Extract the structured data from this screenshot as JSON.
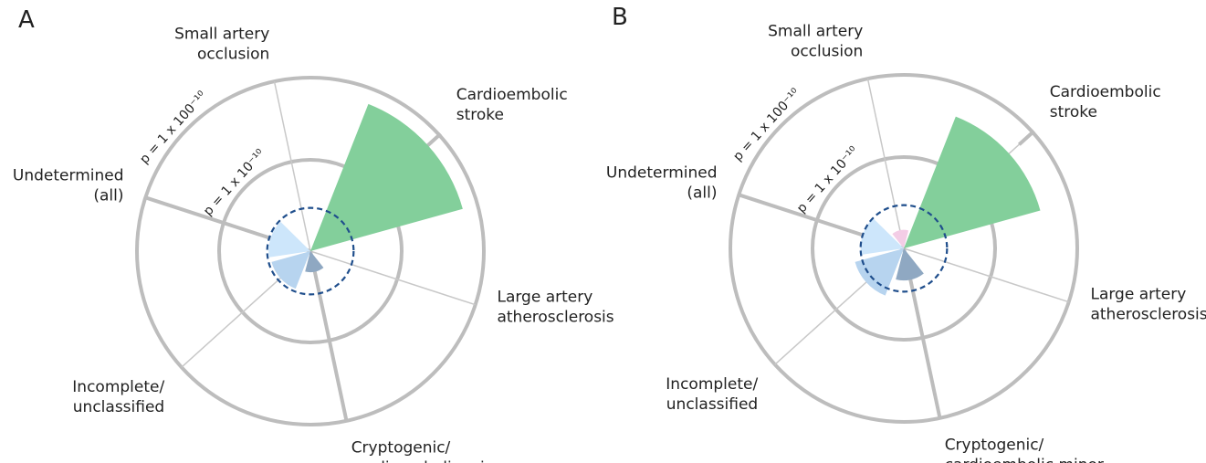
{
  "chart_data": [
    {
      "type": "polar",
      "panel": "A",
      "categories": [
        [
          "Small artery",
          "occlusion"
        ],
        [
          "Cardioembolic",
          "stroke"
        ],
        [
          "Large artery",
          "atherosclerosis"
        ],
        [
          "Cryptogenic/",
          "cardioembolic minor"
        ],
        [
          "Incomplete/",
          "unclassified"
        ],
        [
          "Undetermined",
          "(all)"
        ]
      ],
      "values": [
        null,
        65,
        null,
        1.4,
        2.4,
        2.5
      ],
      "colors": [
        "#f3cde6",
        "#83cf9b",
        null,
        "#8fa8c2",
        "#b7d4ef",
        "#cde6fb"
      ],
      "rscale": "log",
      "rlim": [
        1,
        100
      ],
      "rticks": [
        {
          "value": 10,
          "label": "p = 1 x 10⁻¹⁰"
        },
        {
          "value": 100,
          "label": "p = 1 x 100⁻¹⁰"
        }
      ],
      "threshold": 2.6
    },
    {
      "type": "polar",
      "panel": "B",
      "categories": [
        [
          "Small artery",
          "occlusion"
        ],
        [
          "Cardioembolic",
          "stroke"
        ],
        [
          "Large artery",
          "atherosclerosis"
        ],
        [
          "Cryptogenic/",
          "cardioembolic minor"
        ],
        [
          "Incomplete/",
          "unclassified"
        ],
        [
          "Undetermined",
          "(all)"
        ]
      ],
      "values": [
        1.3,
        41,
        null,
        1.9,
        3.2,
        2.6
      ],
      "colors": [
        "#f3cde6",
        "#83cf9b",
        null,
        "#8fa8c2",
        "#b7d4ef",
        "#cde6fb"
      ],
      "rscale": "log",
      "rlim": [
        1,
        100
      ],
      "rticks": [
        {
          "value": 10,
          "label": "p = 1 x 10⁻¹⁰"
        },
        {
          "value": 100,
          "label": "p = 1 x 100⁻¹⁰"
        }
      ],
      "threshold": 2.6
    }
  ]
}
